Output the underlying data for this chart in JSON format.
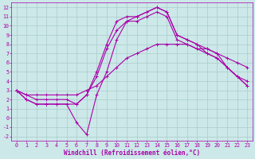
{
  "xlabel": "Windchill (Refroidissement éolien,°C)",
  "background_color": "#cce8e8",
  "grid_color": "#aacccc",
  "line_color": "#aa00aa",
  "xlim": [
    -0.5,
    23.5
  ],
  "ylim": [
    -2.5,
    12.5
  ],
  "yticks": [
    -2,
    -1,
    0,
    1,
    2,
    3,
    4,
    5,
    6,
    7,
    8,
    9,
    10,
    11,
    12
  ],
  "xticks": [
    0,
    1,
    2,
    3,
    4,
    5,
    6,
    7,
    8,
    9,
    10,
    11,
    12,
    13,
    14,
    15,
    16,
    17,
    18,
    19,
    20,
    21,
    22,
    23
  ],
  "line1_x": [
    0,
    1,
    2,
    3,
    4,
    5,
    6,
    7,
    8,
    9,
    10,
    11,
    12,
    13,
    14,
    15,
    16,
    17,
    18,
    19,
    20,
    21,
    22,
    23
  ],
  "line1_y": [
    3,
    2,
    1.5,
    1.5,
    1.5,
    1.5,
    -0.5,
    -1.8,
    2.5,
    5,
    8.5,
    10.5,
    11.0,
    11.5,
    12.0,
    11.5,
    9.0,
    8.5,
    8.0,
    7.0,
    6.5,
    5.5,
    4.5,
    3.5
  ],
  "line2_x": [
    0,
    1,
    2,
    3,
    4,
    5,
    6,
    7,
    8,
    9,
    10,
    11,
    12,
    13,
    14,
    15,
    16,
    17,
    18,
    19,
    20,
    21,
    22,
    23
  ],
  "line2_y": [
    3,
    2,
    1.5,
    1.5,
    1.5,
    1.5,
    1.5,
    2.5,
    5.0,
    8.0,
    10.5,
    11.0,
    11.0,
    11.5,
    12.0,
    11.5,
    9.0,
    8.5,
    8.0,
    7.5,
    7.0,
    5.5,
    4.5,
    3.5
  ],
  "line3_x": [
    0,
    1,
    2,
    3,
    4,
    5,
    6,
    7,
    8,
    9,
    10,
    11,
    12,
    13,
    14,
    15,
    16,
    17,
    18,
    19,
    20,
    21,
    22,
    23
  ],
  "line3_y": [
    3,
    2.5,
    2.0,
    2.0,
    2.0,
    2.0,
    1.5,
    2.5,
    4.5,
    7.5,
    9.5,
    10.5,
    10.5,
    11.0,
    11.5,
    11.0,
    8.5,
    8.0,
    7.5,
    7.0,
    6.5,
    5.5,
    4.5,
    4.0
  ],
  "line4_x": [
    0,
    1,
    2,
    3,
    4,
    5,
    6,
    7,
    8,
    9,
    10,
    11,
    12,
    13,
    14,
    15,
    16,
    17,
    18,
    19,
    20,
    21,
    22,
    23
  ],
  "line4_y": [
    3,
    2.5,
    2.5,
    2.5,
    2.5,
    2.5,
    2.5,
    3.0,
    3.5,
    4.5,
    5.5,
    6.5,
    7.0,
    7.5,
    8.0,
    8.0,
    8.0,
    8.0,
    7.5,
    7.5,
    7.0,
    6.5,
    6.0,
    5.5
  ],
  "xlabel_fontsize": 5.5,
  "tick_fontsize": 4.8,
  "linewidth": 0.8,
  "marker_size": 2.5
}
